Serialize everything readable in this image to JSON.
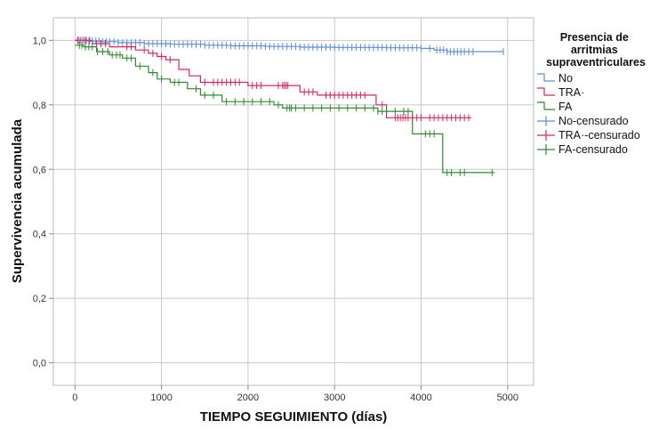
{
  "chart_data": {
    "type": "line",
    "title": "",
    "xlabel": "TIEMPO SEGUIMIENTO (días)",
    "ylabel": "Supervivencia acumulada",
    "xlim": [
      -250,
      5300
    ],
    "ylim": [
      -0.07,
      1.07
    ],
    "x_ticks": [
      0,
      1000,
      2000,
      3000,
      4000,
      5000
    ],
    "x_tick_labels": [
      "0",
      "1000",
      "2000",
      "3000",
      "4000",
      "5000"
    ],
    "y_ticks": [
      0.0,
      0.2,
      0.4,
      0.6,
      0.8,
      1.0
    ],
    "y_tick_labels": [
      "0,0",
      "0,2",
      "0,4",
      "0,6",
      "0,8",
      "1,0"
    ],
    "grid": true,
    "legend": {
      "title": "Presencia de arritmias supraventriculares",
      "position": "right",
      "entries": [
        "No",
        "TRA·",
        "FA",
        "No-censurado",
        "TRA·-censurado",
        "FA-censurado"
      ]
    },
    "series": [
      {
        "name": "No",
        "color": "#5b8fd9",
        "steps": [
          [
            0,
            1.0
          ],
          [
            150,
            0.998
          ],
          [
            300,
            0.996
          ],
          [
            500,
            0.993
          ],
          [
            800,
            0.99
          ],
          [
            1100,
            0.988
          ],
          [
            1500,
            0.985
          ],
          [
            1800,
            0.983
          ],
          [
            2200,
            0.981
          ],
          [
            2600,
            0.979
          ],
          [
            3000,
            0.978
          ],
          [
            3600,
            0.977
          ],
          [
            4000,
            0.975
          ],
          [
            4150,
            0.97
          ],
          [
            4300,
            0.965
          ]
        ],
        "end_x": 4950,
        "censored": [
          40,
          80,
          120,
          160,
          200,
          240,
          280,
          320,
          360,
          400,
          450,
          500,
          550,
          600,
          650,
          700,
          750,
          800,
          850,
          900,
          950,
          1000,
          1050,
          1100,
          1150,
          1200,
          1250,
          1300,
          1350,
          1400,
          1450,
          1500,
          1550,
          1600,
          1650,
          1700,
          1750,
          1800,
          1850,
          1900,
          1950,
          2000,
          2050,
          2100,
          2150,
          2200,
          2250,
          2300,
          2350,
          2400,
          2450,
          2500,
          2550,
          2600,
          2650,
          2700,
          2750,
          2800,
          2850,
          2900,
          2950,
          3000,
          3050,
          3100,
          3150,
          3200,
          3250,
          3300,
          3350,
          3400,
          3450,
          3500,
          3550,
          3600,
          3650,
          3700,
          3750,
          3800,
          3850,
          3900,
          3950,
          4000,
          4100,
          4180,
          4220,
          4260,
          4300,
          4340,
          4380,
          4420,
          4460,
          4500,
          4550,
          4600,
          4950
        ]
      },
      {
        "name": "TRA·",
        "color": "#d6245f",
        "steps": [
          [
            0,
            1.0
          ],
          [
            200,
            0.99
          ],
          [
            400,
            0.98
          ],
          [
            700,
            0.97
          ],
          [
            850,
            0.96
          ],
          [
            950,
            0.95
          ],
          [
            1050,
            0.94
          ],
          [
            1200,
            0.91
          ],
          [
            1320,
            0.89
          ],
          [
            1450,
            0.87
          ],
          [
            2000,
            0.86
          ],
          [
            2600,
            0.84
          ],
          [
            2800,
            0.83
          ],
          [
            3480,
            0.8
          ],
          [
            3600,
            0.76
          ]
        ],
        "end_x": 4580,
        "censored": [
          30,
          60,
          100,
          130,
          170,
          250,
          300,
          350,
          600,
          650,
          800,
          900,
          1000,
          1100,
          1500,
          1600,
          1650,
          1700,
          1750,
          1800,
          1850,
          1900,
          2050,
          2100,
          2150,
          2350,
          2400,
          2420,
          2440,
          2460,
          2650,
          2700,
          2750,
          2900,
          2950,
          3000,
          3050,
          3100,
          3150,
          3200,
          3250,
          3300,
          3350,
          3550,
          3700,
          3730,
          3760,
          3790,
          3820,
          3850,
          3900,
          3950,
          4000,
          4100,
          4150,
          4200,
          4250,
          4300,
          4350,
          4400,
          4450,
          4500,
          4550
        ]
      },
      {
        "name": "FA",
        "color": "#2f8a2f",
        "steps": [
          [
            0,
            0.985
          ],
          [
            100,
            0.98
          ],
          [
            250,
            0.965
          ],
          [
            400,
            0.955
          ],
          [
            550,
            0.945
          ],
          [
            700,
            0.92
          ],
          [
            850,
            0.9
          ],
          [
            950,
            0.88
          ],
          [
            1100,
            0.87
          ],
          [
            1300,
            0.85
          ],
          [
            1450,
            0.83
          ],
          [
            1700,
            0.81
          ],
          [
            2300,
            0.8
          ],
          [
            2400,
            0.79
          ],
          [
            3500,
            0.78
          ],
          [
            3900,
            0.71
          ],
          [
            4250,
            0.59
          ]
        ],
        "end_x": 4850,
        "censored": [
          50,
          80,
          120,
          160,
          200,
          260,
          320,
          380,
          430,
          480,
          520,
          600,
          650,
          750,
          900,
          1000,
          1150,
          1200,
          1400,
          1500,
          1600,
          1750,
          1850,
          1950,
          2050,
          2150,
          2250,
          2350,
          2450,
          2480,
          2500,
          2550,
          2650,
          2750,
          2850,
          2950,
          3050,
          3150,
          3250,
          3350,
          3450,
          3500,
          3550,
          3600,
          3700,
          3800,
          3850,
          4050,
          4100,
          4150,
          4300,
          4350,
          4450,
          4500,
          4820
        ]
      }
    ]
  }
}
